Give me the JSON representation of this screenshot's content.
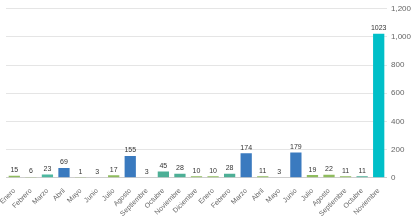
{
  "chart_data": {
    "type": "bar",
    "categories": [
      "Enero",
      "Febrero",
      "Marzo",
      "Abril",
      "Mayo",
      "Junio",
      "Julio",
      "Agosto",
      "Septiembre",
      "Octubre",
      "Noviembre",
      "Diciembre",
      "Enero",
      "Febrero",
      "Marzo",
      "Abril",
      "Mayo",
      "Junio",
      "Julio",
      "Agosto",
      "Septiembre",
      "Octubre",
      "Noviembre"
    ],
    "values": [
      15,
      6,
      23,
      69,
      1,
      3,
      17,
      155,
      3,
      45,
      28,
      10,
      10,
      28,
      174,
      11,
      3,
      179,
      19,
      22,
      11,
      11,
      1023
    ],
    "colors": [
      "#8fbc5e",
      "#8fbc5e",
      "#4db8a0",
      "#3a7abf",
      "#8fbc5e",
      "#8fbc5e",
      "#8fbc5e",
      "#3a7abf",
      "#4daf96",
      "#4daf96",
      "#4daf96",
      "#8fbc5e",
      "#8fbc5e",
      "#4daf96",
      "#3a7abf",
      "#8fbc5e",
      "#8fbc5e",
      "#3a7abf",
      "#8fbc5e",
      "#8fbc5e",
      "#8fbc5e",
      "#4daf96",
      "#00bfc8"
    ],
    "ylim": [
      0,
      1200
    ],
    "yticks": [
      0,
      200,
      400,
      600,
      800,
      1000,
      1200
    ],
    "grid": true,
    "data_labels": true
  }
}
